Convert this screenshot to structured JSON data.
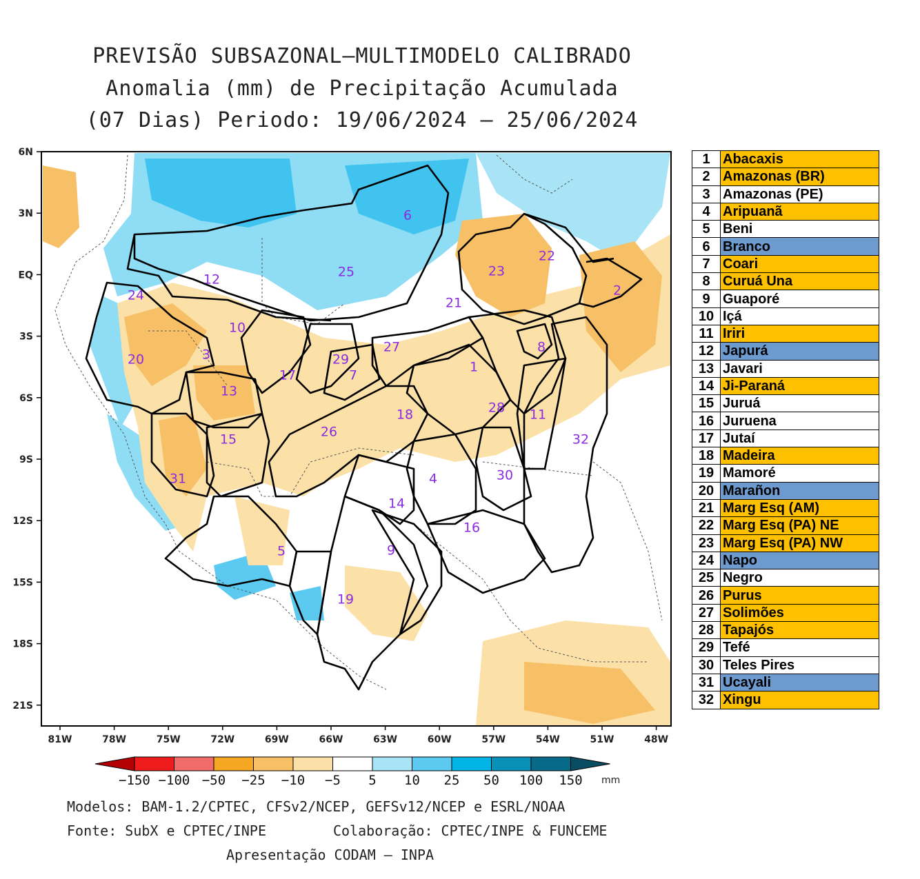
{
  "title": {
    "line1": "PREVISÃO SUBSAZONAL—MULTIMODELO CALIBRADO",
    "line2": "Anomalia (mm) de Precipitação Acumulada",
    "line3": "(07 Dias) Periodo: 19/06/2024 — 25/06/2024"
  },
  "axes": {
    "lat_labels": [
      "6N",
      "3N",
      "EQ",
      "3S",
      "6S",
      "9S",
      "12S",
      "15S",
      "18S",
      "21S"
    ],
    "lon_labels": [
      "81W",
      "78W",
      "75W",
      "72W",
      "69W",
      "66W",
      "63W",
      "60W",
      "57W",
      "54W",
      "51W",
      "48W"
    ]
  },
  "colorbar": {
    "labels": [
      "-150",
      "-100",
      "-50",
      "-25",
      "-10",
      "-5",
      "5",
      "10",
      "25",
      "50",
      "100",
      "150"
    ],
    "unit": "mm",
    "colors": [
      "#b40000",
      "#ee1c1c",
      "#f26b6b",
      "#f5a623",
      "#f7c067",
      "#fbe0a8",
      "#ffffff",
      "#a8e4f5",
      "#5ccaf0",
      "#00b4e6",
      "#0891b8",
      "#066a88",
      "#0a4d63"
    ]
  },
  "basin_labels": [
    "1",
    "2",
    "3",
    "4",
    "5",
    "6",
    "7",
    "8",
    "9",
    "10",
    "11",
    "12",
    "13",
    "14",
    "15",
    "16",
    "17",
    "18",
    "19",
    "20",
    "21",
    "22",
    "23",
    "24",
    "25",
    "26",
    "27",
    "28",
    "29",
    "30",
    "31",
    "32"
  ],
  "legend": [
    {
      "num": "1",
      "name": "Abacaxis",
      "status": "orange"
    },
    {
      "num": "2",
      "name": "Amazonas (BR)",
      "status": "orange"
    },
    {
      "num": "3",
      "name": "Amazonas (PE)",
      "status": "white"
    },
    {
      "num": "4",
      "name": "Aripuanã",
      "status": "orange"
    },
    {
      "num": "5",
      "name": "Beni",
      "status": "white"
    },
    {
      "num": "6",
      "name": "Branco",
      "status": "blue"
    },
    {
      "num": "7",
      "name": "Coari",
      "status": "orange"
    },
    {
      "num": "8",
      "name": "Curuá Una",
      "status": "orange"
    },
    {
      "num": "9",
      "name": "Guaporé",
      "status": "white"
    },
    {
      "num": "10",
      "name": "Içá",
      "status": "white"
    },
    {
      "num": "11",
      "name": "Iriri",
      "status": "orange"
    },
    {
      "num": "12",
      "name": "Japurá",
      "status": "blue"
    },
    {
      "num": "13",
      "name": "Javari",
      "status": "white"
    },
    {
      "num": "14",
      "name": "Ji-Paraná",
      "status": "orange"
    },
    {
      "num": "15",
      "name": "Juruá",
      "status": "white"
    },
    {
      "num": "16",
      "name": "Juruena",
      "status": "white"
    },
    {
      "num": "17",
      "name": "Jutaí",
      "status": "white"
    },
    {
      "num": "18",
      "name": "Madeira",
      "status": "orange"
    },
    {
      "num": "19",
      "name": "Mamoré",
      "status": "white"
    },
    {
      "num": "20",
      "name": "Marañon",
      "status": "blue"
    },
    {
      "num": "21",
      "name": "Marg Esq (AM)",
      "status": "orange"
    },
    {
      "num": "22",
      "name": "Marg Esq (PA) NE",
      "status": "orange"
    },
    {
      "num": "23",
      "name": "Marg Esq (PA) NW",
      "status": "orange"
    },
    {
      "num": "24",
      "name": "Napo",
      "status": "blue"
    },
    {
      "num": "25",
      "name": "Negro",
      "status": "white"
    },
    {
      "num": "26",
      "name": "Purus",
      "status": "orange"
    },
    {
      "num": "27",
      "name": "Solimões",
      "status": "orange"
    },
    {
      "num": "28",
      "name": "Tapajós",
      "status": "orange"
    },
    {
      "num": "29",
      "name": "Tefé",
      "status": "white"
    },
    {
      "num": "30",
      "name": "Teles Pires",
      "status": "white"
    },
    {
      "num": "31",
      "name": "Ucayali",
      "status": "blue"
    },
    {
      "num": "32",
      "name": "Xingu",
      "status": "orange"
    }
  ],
  "status_colors": {
    "orange": "#ffc000",
    "blue": "#6d9bd0",
    "white": "#ffffff"
  },
  "footer": {
    "line1": "Modelos: BAM-1.2/CPTEC, CFSv2/NCEP, GEFSv12/NCEP e ESRL/NOAA",
    "line2a": "Fonte: SubX e CPTEC/INPE",
    "line2b": "Colaboração: CPTEC/INPE & FUNCEME",
    "line3": "Apresentação CODAM — INPA"
  }
}
